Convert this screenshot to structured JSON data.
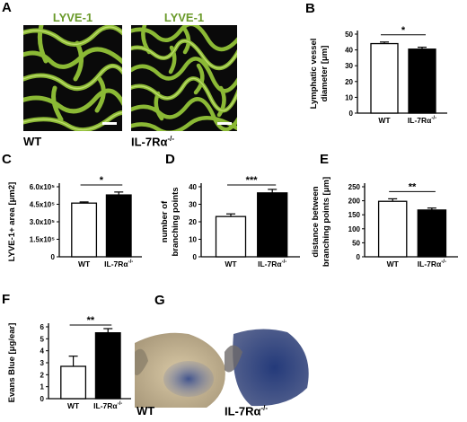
{
  "panels": {
    "A": {
      "letter": "A",
      "stain_label": "LYVE-1",
      "genotype_left": "WT",
      "genotype_right_main": "IL-7R",
      "genotype_right_sup": "-/-",
      "alpha": "α"
    },
    "G": {
      "letter": "G",
      "genotype_left": "WT",
      "genotype_right_main": "IL-7R",
      "genotype_right_sup": "-/-",
      "alpha": "α"
    }
  },
  "colors": {
    "vessel": "#9acc3a",
    "bar_wt": "#ffffff",
    "bar_ko": "#000000"
  },
  "chart_data": [
    {
      "panel": "B",
      "type": "bar",
      "categories": [
        "WT",
        "IL-7Rα-/-"
      ],
      "values": [
        44,
        40.5
      ],
      "errors": [
        1.0,
        1.2
      ],
      "ylabel_line1": "Lymphatic vessel",
      "ylabel_line2": "diameter [μm]",
      "ylim": [
        0,
        50
      ],
      "yticks": [
        "0",
        "10",
        "20",
        "30",
        "40",
        "50"
      ],
      "ytick_values": [
        0,
        10,
        20,
        30,
        40,
        50
      ],
      "significance": "*"
    },
    {
      "panel": "C",
      "type": "bar",
      "categories": [
        "WT",
        "IL-7Rα-/-"
      ],
      "values": [
        460000,
        530000
      ],
      "errors": [
        10000,
        25000
      ],
      "ylabel_line1": "LYVE-1+ area [μm2]",
      "ylim": [
        0,
        600000
      ],
      "yticks": [
        "0",
        "1.5x10⁵",
        "3.0x10⁵",
        "4.5x10⁵",
        "6.0x10⁵"
      ],
      "ytick_values": [
        0,
        150000,
        300000,
        450000,
        600000
      ],
      "significance": "*"
    },
    {
      "panel": "D",
      "type": "bar",
      "categories": [
        "WT",
        "IL-7Rα-/-"
      ],
      "values": [
        23,
        36.5
      ],
      "errors": [
        1.5,
        2.0
      ],
      "ylabel_line1": "number of",
      "ylabel_line2": "branching points",
      "ylim": [
        0,
        40
      ],
      "yticks": [
        "0",
        "10",
        "20",
        "30",
        "40"
      ],
      "ytick_values": [
        0,
        10,
        20,
        30,
        40
      ],
      "significance": "***"
    },
    {
      "panel": "E",
      "type": "bar",
      "categories": [
        "WT",
        "IL-7Rα-/-"
      ],
      "values": [
        198,
        167
      ],
      "errors": [
        9,
        7
      ],
      "ylabel_line1": "distance between",
      "ylabel_line2": "branching points [μm]",
      "ylim": [
        0,
        250
      ],
      "yticks": [
        "0",
        "50",
        "100",
        "150",
        "200",
        "250"
      ],
      "ytick_values": [
        0,
        50,
        100,
        150,
        200,
        250
      ],
      "significance": "**"
    },
    {
      "panel": "F",
      "type": "bar",
      "categories": [
        "WT",
        "IL-7Rα-/-"
      ],
      "values": [
        2.7,
        5.5
      ],
      "errors": [
        0.85,
        0.35
      ],
      "ylabel_line1": "Evans Blue [μg/ear]",
      "ylim": [
        0,
        6
      ],
      "yticks": [
        "0",
        "1",
        "2",
        "3",
        "4",
        "5",
        "6"
      ],
      "ytick_values": [
        0,
        1,
        2,
        3,
        4,
        5,
        6
      ],
      "significance": "**"
    }
  ]
}
